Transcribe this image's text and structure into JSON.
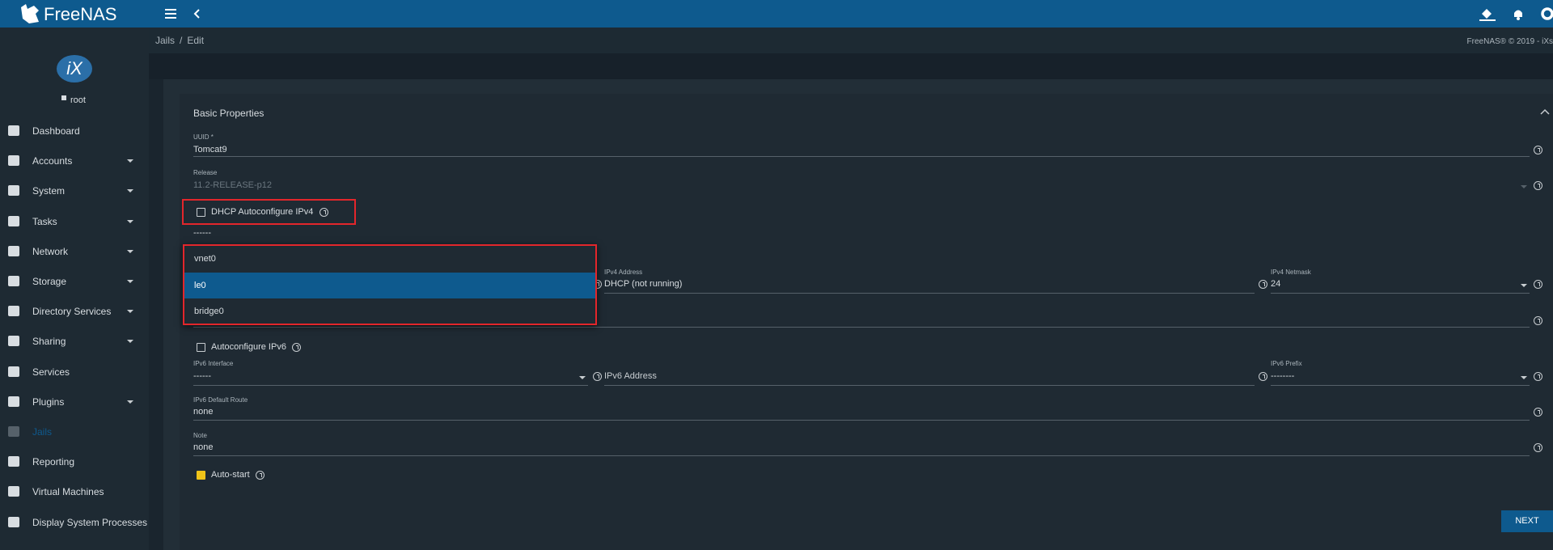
{
  "header": {
    "logo": "FreeNAS",
    "copyright": "FreeNAS® © 2019 - iXs"
  },
  "breadcrumb": [
    "Jails",
    "Edit"
  ],
  "sidebar": {
    "user": "root",
    "logo": "iX",
    "items": [
      {
        "label": "Dashboard",
        "submenu": false,
        "active": false
      },
      {
        "label": "Accounts",
        "submenu": true,
        "active": false
      },
      {
        "label": "System",
        "submenu": true,
        "active": false
      },
      {
        "label": "Tasks",
        "submenu": true,
        "active": false
      },
      {
        "label": "Network",
        "submenu": true,
        "active": false
      },
      {
        "label": "Storage",
        "submenu": true,
        "active": false
      },
      {
        "label": "Directory Services",
        "submenu": true,
        "active": false
      },
      {
        "label": "Sharing",
        "submenu": true,
        "active": false
      },
      {
        "label": "Services",
        "submenu": false,
        "active": false
      },
      {
        "label": "Plugins",
        "submenu": true,
        "active": false
      },
      {
        "label": "Jails",
        "submenu": false,
        "active": true
      },
      {
        "label": "Reporting",
        "submenu": false,
        "active": false
      },
      {
        "label": "Virtual Machines",
        "submenu": false,
        "active": false
      },
      {
        "label": "Display System Processes",
        "submenu": false,
        "active": false
      }
    ]
  },
  "form": {
    "section": "Basic Properties",
    "uuid": {
      "label": "UUID *",
      "value": "Tomcat9"
    },
    "release": {
      "label": "Release",
      "value": "11.2-RELEASE-p12"
    },
    "dhcp": {
      "label": "DHCP Autoconfigure IPv4",
      "checked": false
    },
    "ipv4_interface": {
      "value": "------",
      "options": [
        "vnet0",
        "le0",
        "bridge0"
      ],
      "selected": 1
    },
    "ipv4_address": {
      "label": "IPv4 Address",
      "value": "DHCP (not running)"
    },
    "ipv4_netmask": {
      "label": "IPv4 Netmask",
      "value": "24"
    },
    "autoconf_ipv6": {
      "label": "Autoconfigure IPv6",
      "checked": false
    },
    "ipv6_interface": {
      "label": "IPv6 Interface",
      "value": "------"
    },
    "ipv6_address": {
      "placeholder": "IPv6 Address"
    },
    "ipv6_prefix": {
      "label": "IPv6 Prefix",
      "value": "--------"
    },
    "ipv6_default_route": {
      "label": "IPv6 Default Route",
      "value": "none"
    },
    "note": {
      "label": "Note",
      "value": "none"
    },
    "autostart": {
      "label": "Auto-start",
      "checked": true
    },
    "next": "NEXT"
  }
}
